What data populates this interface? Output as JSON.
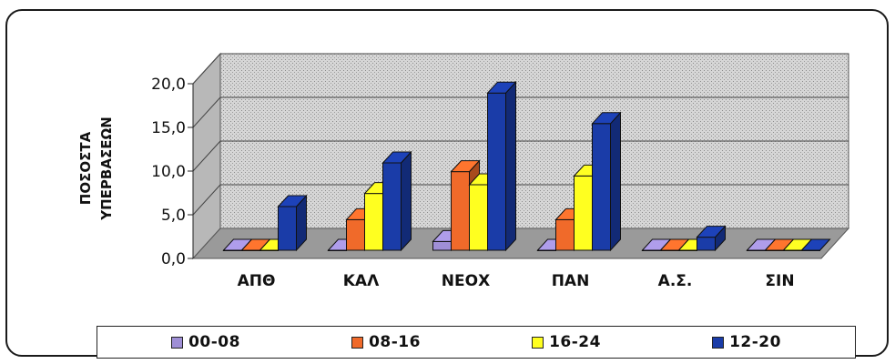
{
  "chart_data": {
    "type": "bar",
    "style": "3d-clustered-column",
    "categories": [
      "ΑΠΘ",
      "ΚΑΛ",
      "ΝΕΟΧ",
      "ΠΑΝ",
      "Α.Σ.",
      "ΣΙΝ"
    ],
    "ylabel_lines": [
      "ΠΟΣΟΣΤΑ",
      "ΥΠΕΡΒΑΣΕΩΝ"
    ],
    "ylim": [
      0,
      20
    ],
    "yticks": [
      "0,0",
      "5,0",
      "10,0",
      "15,0",
      "20,0"
    ],
    "grid": true,
    "legend_position": "bottom",
    "series": [
      {
        "name": "00-08",
        "color": "#9f8fd6",
        "values": [
          0,
          0,
          1,
          0,
          0,
          0
        ]
      },
      {
        "name": "08-16",
        "color": "#f06a2a",
        "values": [
          0,
          3.5,
          9,
          3.5,
          0,
          0
        ]
      },
      {
        "name": "16-24",
        "color": "#ffff20",
        "values": [
          0,
          6.5,
          7.5,
          8.5,
          0,
          0
        ]
      },
      {
        "name": "12-20",
        "color": "#1a3ca8",
        "values": [
          5,
          10,
          18,
          14.5,
          1.5,
          0
        ]
      }
    ]
  }
}
